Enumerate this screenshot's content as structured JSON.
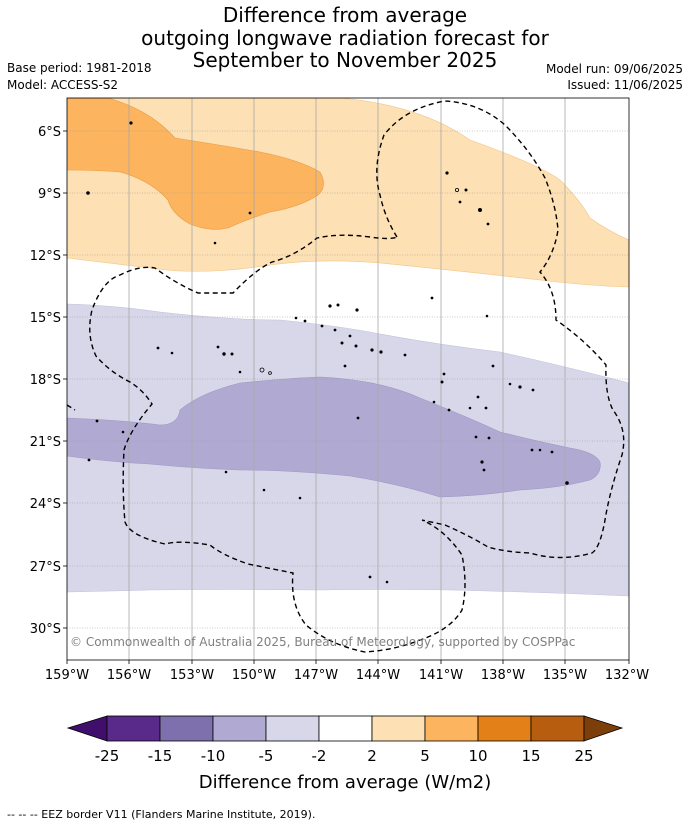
{
  "title": {
    "line1": "Difference from average",
    "line2": "outgoing longwave radiation forecast for",
    "line3": "September to November 2025"
  },
  "meta": {
    "base_period": "Base period: 1981-2018",
    "model": "Model: ACCESS-S2",
    "model_run": "Model run: 09/06/2025",
    "issued": "Issued: 11/06/2025"
  },
  "map": {
    "lat_labels": [
      "6°S",
      "9°S",
      "12°S",
      "15°S",
      "18°S",
      "21°S",
      "24°S",
      "27°S",
      "30°S"
    ],
    "lon_labels": [
      "159°W",
      "156°W",
      "153°W",
      "150°W",
      "147°W",
      "144°W",
      "141°W",
      "138°W",
      "135°W",
      "132°W"
    ],
    "copyright": "© Commonwealth of Australia 2025, Bureau of Meteorology, supported by COSPPac"
  },
  "legend": {
    "title": "Difference from average (W/m2)",
    "ticks": [
      "-25",
      "-15",
      "-10",
      "-5",
      "-2",
      "2",
      "5",
      "10",
      "15",
      "25"
    ],
    "colors": [
      "#3f0f6b",
      "#5a2a8a",
      "#7e70ad",
      "#b0aad2",
      "#d7d7e9",
      "#ffffff",
      "#fde0b3",
      "#fcb45f",
      "#e38018",
      "#b65d10",
      "#7c3f0a"
    ]
  },
  "footer": {
    "eez_note": "--  --  -- EEZ border V11 (Flanders Marine Institute, 2019)."
  }
}
